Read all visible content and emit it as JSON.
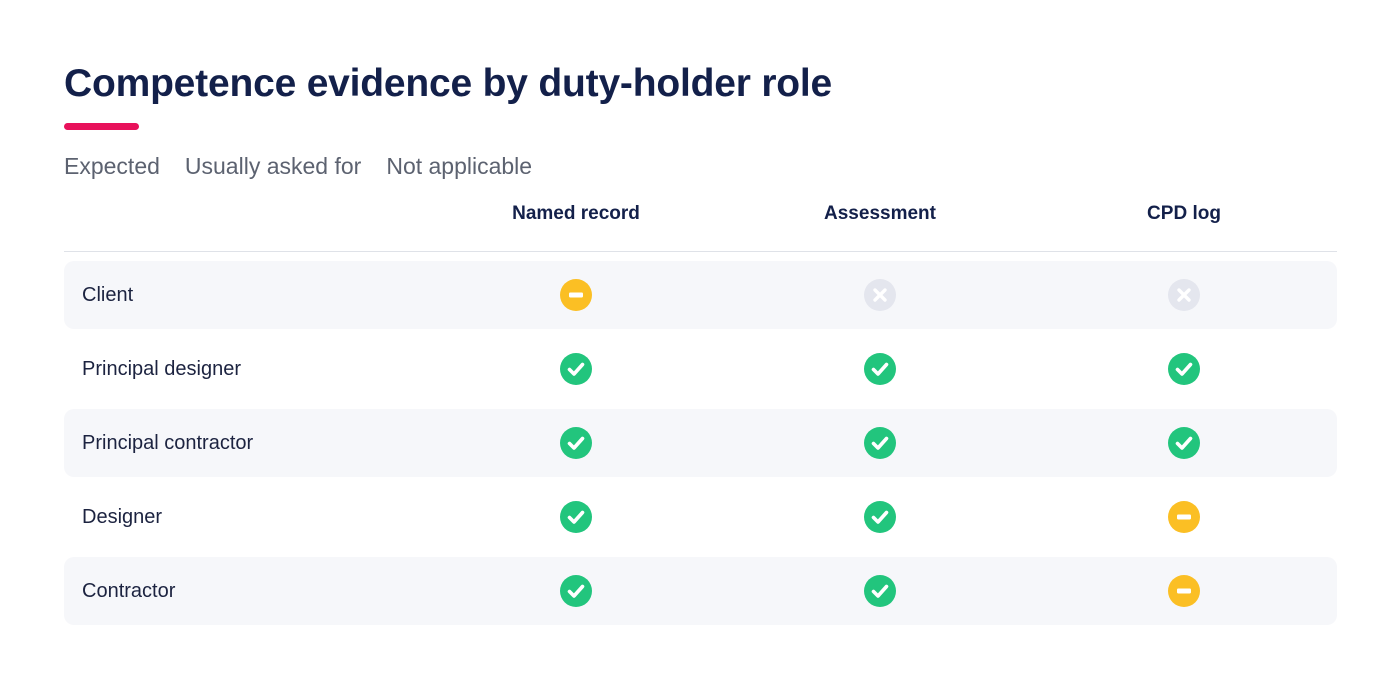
{
  "title": "Competence evidence by duty-holder role",
  "legend": [
    "Expected",
    "Usually asked for",
    "Not applicable"
  ],
  "columns": [
    "Named record",
    "Assessment",
    "CPD log"
  ],
  "rows": [
    {
      "role": "Client",
      "values": [
        "usually",
        "na",
        "na"
      ]
    },
    {
      "role": "Principal designer",
      "values": [
        "expected",
        "expected",
        "expected"
      ]
    },
    {
      "role": "Principal contractor",
      "values": [
        "expected",
        "expected",
        "expected"
      ]
    },
    {
      "role": "Designer",
      "values": [
        "expected",
        "expected",
        "usually"
      ]
    },
    {
      "role": "Contractor",
      "values": [
        "expected",
        "expected",
        "usually"
      ]
    }
  ],
  "status_icons": {
    "expected": "check-circle-icon",
    "usually": "minus-circle-icon",
    "na": "x-circle-icon"
  },
  "colors": {
    "accent": "#e8115b",
    "expected": "#22c57d",
    "usually": "#fbbf24",
    "na": "#e4e6ee"
  }
}
